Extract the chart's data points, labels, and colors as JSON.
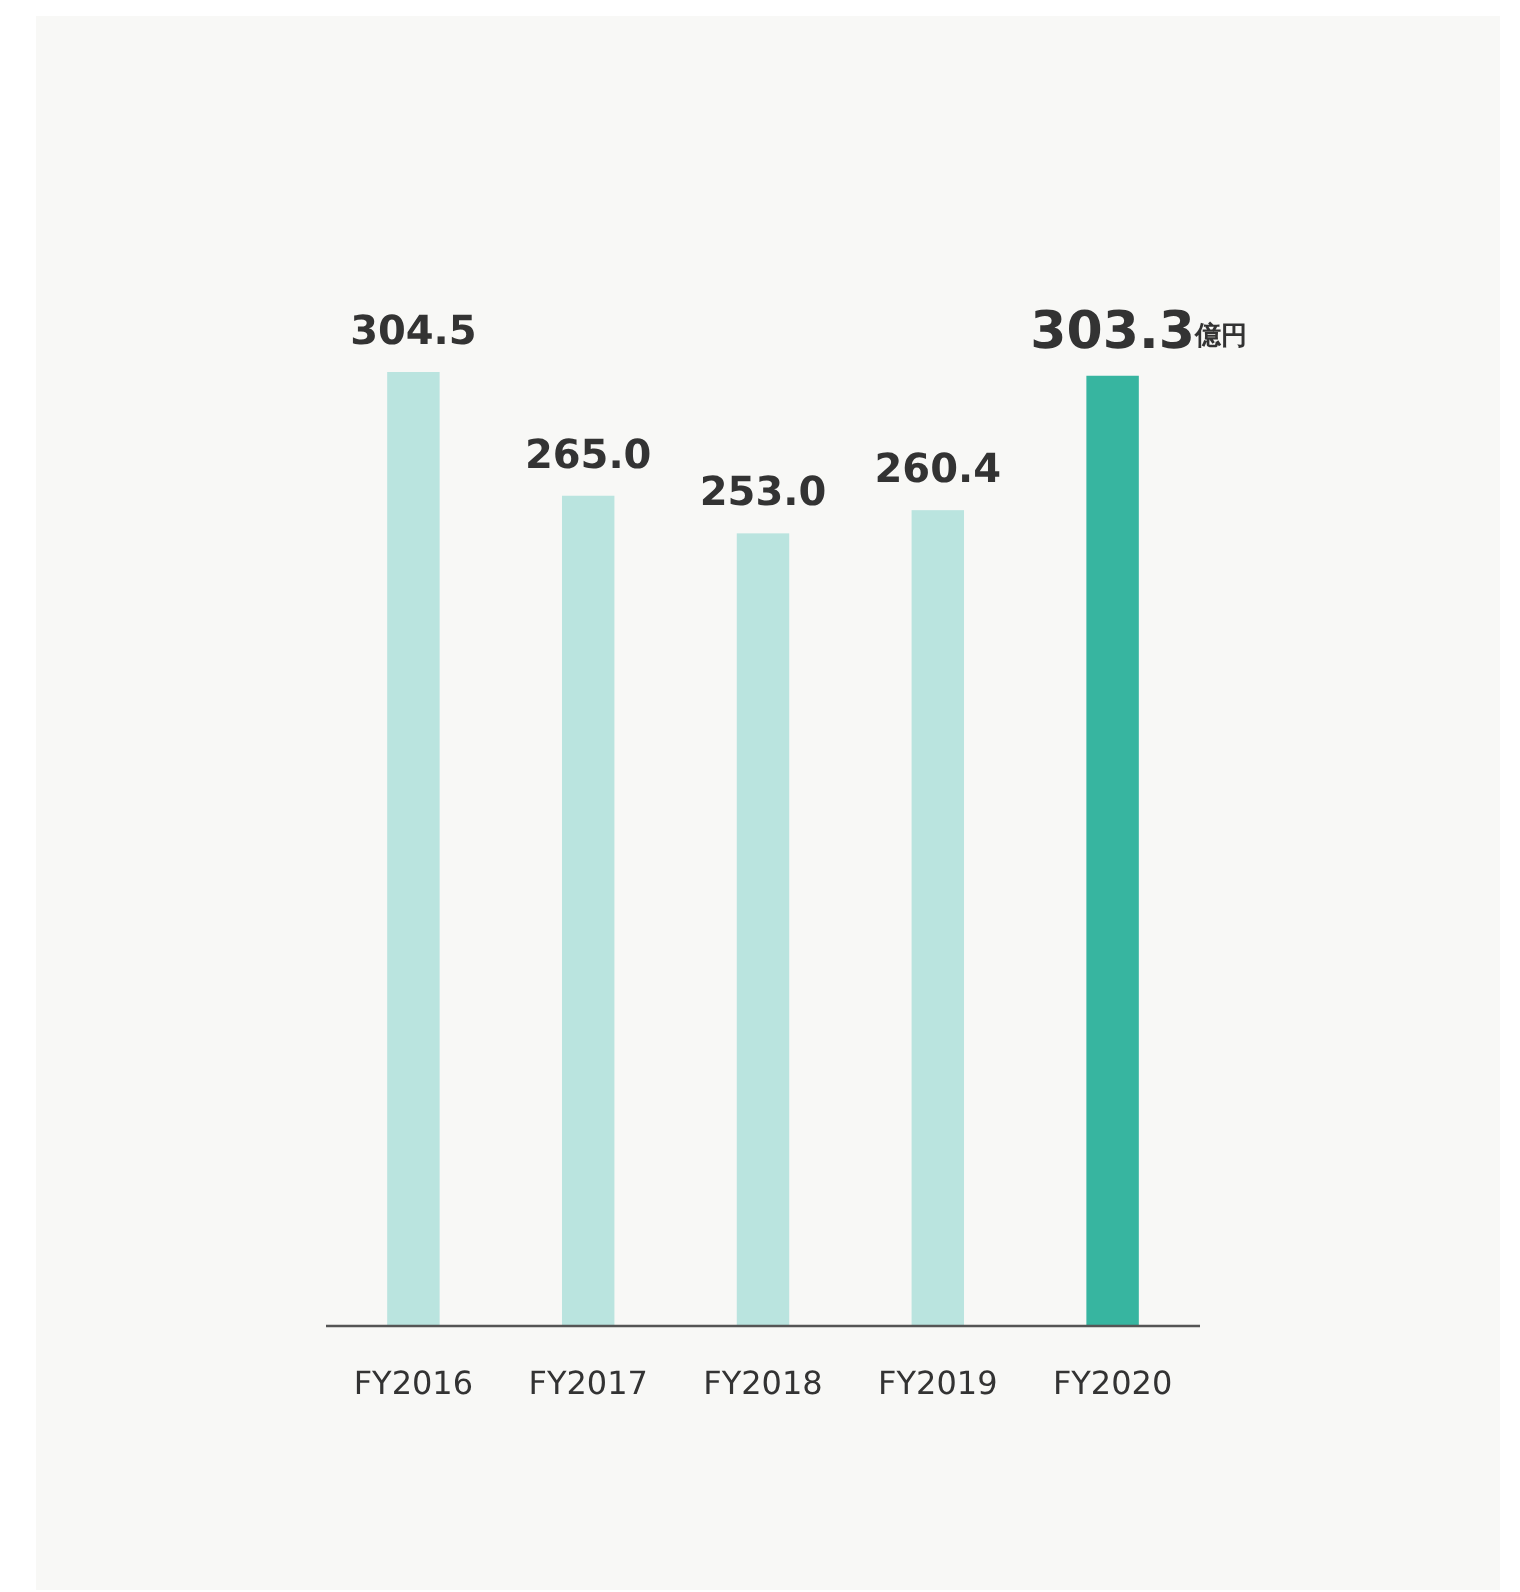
{
  "chart_data": {
    "type": "bar",
    "categories": [
      "FY2016",
      "FY2017",
      "FY2018",
      "FY2019",
      "FY2020"
    ],
    "values": [
      304.5,
      265.0,
      253.0,
      260.4,
      303.3
    ],
    "colors": [
      "#bae4df",
      "#bae4df",
      "#bae4df",
      "#bae4df",
      "#37b5a0"
    ],
    "value_labels": [
      "304.5",
      "265.0",
      "253.0",
      "260.4",
      "303.3"
    ],
    "annotations": [
      "億円"
    ]
  }
}
